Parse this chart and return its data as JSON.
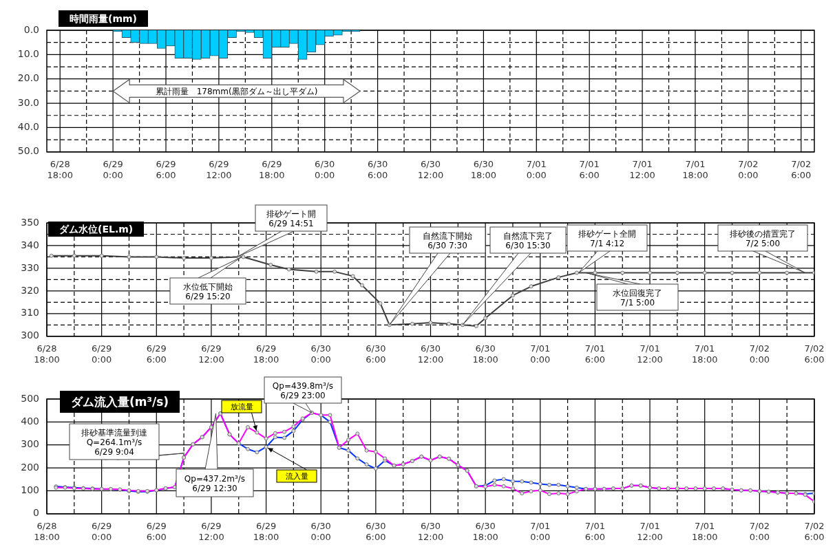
{
  "chart_data": [
    {
      "type": "histogram",
      "title": "時間雨量(mm)",
      "bins": [
        "--06-29T00:00",
        "--06-29T01:00",
        "--06-29T02:00",
        "--06-29T03:00",
        "--06-29T04:00",
        "--06-29T05:00",
        "--06-29T06:00",
        "--06-29T07:00",
        "--06-29T08:00",
        "--06-29T09:00",
        "--06-29T10:00",
        "--06-29T11:00",
        "--06-29T12:00",
        "--06-29T13:00",
        "--06-29T14:00",
        "--06-29T15:00",
        "--06-29T16:00",
        "--06-29T17:00",
        "--06-29T18:00",
        "--06-29T19:00",
        "--06-29T20:00",
        "--06-29T21:00",
        "--06-29T22:00",
        "--06-29T23:00",
        "--06-30T00:00",
        "--06-30T01:00",
        "--06-30T02:00",
        "--06-30T03:00",
        "--06-30T04:00"
      ],
      "values": [
        0.5,
        3,
        5,
        5.5,
        5.5,
        7.5,
        6.5,
        11.5,
        11.5,
        12,
        11.5,
        10.5,
        11.5,
        3,
        0.5,
        1,
        3,
        11.5,
        7,
        7,
        5.5,
        12,
        9,
        6,
        2.5,
        2,
        0.5,
        0.5
      ],
      "color": "#00ccff",
      "xlim": [
        "--06-28T18:00",
        "--07-02T06:00"
      ],
      "xticks": [
        {
          "value": "--06-28T18:00",
          "label": "6/28\n18:00"
        },
        {
          "value": "--06-28T21:00",
          "label": null
        },
        {
          "value": "--06-29T00:00",
          "label": "6/29\n0:00"
        },
        {
          "value": "--06-29T03:00",
          "label": null
        },
        {
          "value": "--06-29T06:00",
          "label": "6/29\n6:00"
        },
        {
          "value": "--06-29T09:00",
          "label": null
        },
        {
          "value": "--06-29T12:00",
          "label": "6/29\n12:00"
        },
        {
          "value": "--06-29T15:00",
          "label": null
        },
        {
          "value": "--06-29T18:00",
          "label": "6/29\n18:00"
        },
        {
          "value": "--06-29T21:00",
          "label": null
        },
        {
          "value": "--06-30T00:00",
          "label": "6/30\n0:00"
        },
        {
          "value": "--06-30T03:00",
          "label": null
        },
        {
          "value": "--06-30T06:00",
          "label": "6/30\n6:00"
        },
        {
          "value": "--06-30T09:00",
          "label": null
        },
        {
          "value": "--06-30T12:00",
          "label": "6/30\n12:00"
        },
        {
          "value": "--06-30T15:00",
          "label": null
        },
        {
          "value": "--06-30T18:00",
          "label": "6/30\n18:00"
        },
        {
          "value": "--06-30T21:00",
          "label": null
        },
        {
          "value": "--07-01T00:00",
          "label": "7/01\n0:00"
        },
        {
          "value": "--07-01T03:00",
          "label": null
        },
        {
          "value": "--07-01T06:00",
          "label": "7/01\n6:00"
        },
        {
          "value": "--07-01T09:00",
          "label": null
        },
        {
          "value": "--07-01T12:00",
          "label": "7/01\n12:00"
        },
        {
          "value": "--07-01T15:00",
          "label": null
        },
        {
          "value": "--07-01T18:00",
          "label": "7/01\n18:00"
        },
        {
          "value": "--07-01T21:00",
          "label": null
        },
        {
          "value": "--07-02T00:00",
          "label": "7/02\n0:00"
        },
        {
          "value": "--07-02T03:00",
          "label": null
        },
        {
          "value": "--07-02T06:00",
          "label": "7/02\n6:00"
        }
      ],
      "ylim": [
        50,
        0
      ],
      "yticks": [
        {
          "value": 0,
          "label": "0.0"
        },
        {
          "value": 5,
          "label": null
        },
        {
          "value": 10,
          "label": "10.0"
        },
        {
          "value": 15,
          "label": null
        },
        {
          "value": 20,
          "label": "20.0"
        },
        {
          "value": 25,
          "label": null
        },
        {
          "value": 30,
          "label": "30.0"
        },
        {
          "value": 35,
          "label": null
        },
        {
          "value": 40,
          "label": "40.0"
        },
        {
          "value": 45,
          "label": null
        },
        {
          "value": 50,
          "label": "50.0"
        }
      ],
      "grid": true,
      "annotations": [
        "累計雨量　178mm(黒部ダム～出し平ダム)"
      ]
    },
    {
      "type": "line",
      "title": "ダム水位(EL.m)",
      "x": [
        "--06-28T18:30",
        "--06-28T21:00",
        "--06-29T00:00",
        "--06-29T03:00",
        "--06-29T06:00",
        "--06-29T09:00",
        "--06-29T12:00",
        "--06-29T15:00",
        "--06-29T15:30",
        "--06-29T18:30",
        "--06-29T20:30",
        "--06-29T23:30",
        "--06-30T01:30",
        "--06-30T03:30",
        "--06-30T04:30",
        "--06-30T06:30",
        "--06-30T07:30",
        "--06-30T10:00",
        "--06-30T12:00",
        "--06-30T14:00",
        "--06-30T15:30",
        "--06-30T17:00",
        "--06-30T18:00",
        "--06-30T21:00",
        "--06-30T23:00",
        "--07-01T02:00",
        "--07-01T04:00",
        "--07-01T06:00",
        "--07-01T09:00",
        "--07-01T12:00",
        "--07-01T15:00",
        "--07-01T18:00",
        "--07-01T21:00",
        "--07-02T00:00",
        "--07-02T03:00",
        "--07-02T06:00"
      ],
      "values": [
        335.5,
        335.5,
        335.5,
        335,
        335,
        334.5,
        334.5,
        335,
        335,
        331.5,
        329.5,
        328.5,
        328.5,
        326.5,
        322.5,
        314.5,
        305,
        305.5,
        306,
        305.5,
        305,
        304.5,
        308,
        318,
        322,
        326,
        328,
        328,
        328,
        328,
        328,
        328,
        328,
        328,
        328,
        328
      ],
      "color": "#404040",
      "marker": "circle",
      "xlim": [
        "--06-28T18:00",
        "--07-02T06:00"
      ],
      "xticks": [
        {
          "value": "--06-28T18:00",
          "label": "6/28\n18:00"
        },
        {
          "value": "--06-28T21:00",
          "label": null
        },
        {
          "value": "--06-29T00:00",
          "label": "6/29\n0:00"
        },
        {
          "value": "--06-29T03:00",
          "label": null
        },
        {
          "value": "--06-29T06:00",
          "label": "6/29\n6:00"
        },
        {
          "value": "--06-29T09:00",
          "label": null
        },
        {
          "value": "--06-29T12:00",
          "label": "6/29\n12:00"
        },
        {
          "value": "--06-29T15:00",
          "label": null
        },
        {
          "value": "--06-29T18:00",
          "label": "6/29\n18:00"
        },
        {
          "value": "--06-29T21:00",
          "label": null
        },
        {
          "value": "--06-30T00:00",
          "label": "6/30\n0:00"
        },
        {
          "value": "--06-30T03:00",
          "label": null
        },
        {
          "value": "--06-30T06:00",
          "label": "6/30\n6:00"
        },
        {
          "value": "--06-30T09:00",
          "label": null
        },
        {
          "value": "--06-30T12:00",
          "label": "6/30\n12:00"
        },
        {
          "value": "--06-30T15:00",
          "label": null
        },
        {
          "value": "--06-30T18:00",
          "label": "6/30\n18:00"
        },
        {
          "value": "--06-30T21:00",
          "label": null
        },
        {
          "value": "--07-01T00:00",
          "label": "7/01\n0:00"
        },
        {
          "value": "--07-01T03:00",
          "label": null
        },
        {
          "value": "--07-01T06:00",
          "label": "7/01\n6:00"
        },
        {
          "value": "--07-01T09:00",
          "label": null
        },
        {
          "value": "--07-01T12:00",
          "label": "7/01\n12:00"
        },
        {
          "value": "--07-01T15:00",
          "label": null
        },
        {
          "value": "--07-01T18:00",
          "label": "7/01\n18:00"
        },
        {
          "value": "--07-01T21:00",
          "label": null
        },
        {
          "value": "--07-02T00:00",
          "label": "7/02\n0:00"
        },
        {
          "value": "--07-02T03:00",
          "label": null
        },
        {
          "value": "--07-02T06:00",
          "label": "7/02\n6:00"
        }
      ],
      "ylim": [
        300,
        350
      ],
      "yticks": [
        300,
        {
          "value": 305,
          "label": null
        },
        310,
        {
          "value": 315,
          "label": null
        },
        320,
        {
          "value": 325,
          "label": null
        },
        330,
        {
          "value": 335,
          "label": null
        },
        340,
        {
          "value": 345,
          "label": null
        },
        350
      ],
      "grid": true,
      "annotations": [
        {
          "text": "排砂ゲート開\n6/29 14:51",
          "x": "--06-29T14:51",
          "y": 335
        },
        {
          "text": "水位低下開始\n6/29  15:20",
          "x": "--06-29T15:20",
          "y": 335
        },
        {
          "text": "自然流下開始\n6/30  7:30",
          "x": "--06-30T07:30",
          "y": 305
        },
        {
          "text": "自然流下完了\n6/30  15:30",
          "x": "--06-30T15:30",
          "y": 305
        },
        {
          "text": "排砂ゲート全開\n7/1  4:12",
          "x": "--07-01T04:12",
          "y": 328
        },
        {
          "text": "水位回復完了\n7/1  5:00",
          "x": "--07-01T05:00",
          "y": 328
        },
        {
          "text": "排砂後の措置完了\n7/2  5:00",
          "x": "--07-02T05:00",
          "y": 328
        }
      ]
    },
    {
      "type": "line",
      "title": "ダム流入量(m³/s)",
      "x": [
        "--06-28T19:00",
        "--06-28T20:00",
        "--06-28T21:00",
        "--06-28T22:00",
        "--06-28T23:00",
        "--06-29T00:00",
        "--06-29T01:00",
        "--06-29T02:00",
        "--06-29T03:00",
        "--06-29T04:00",
        "--06-29T05:00",
        "--06-29T06:00",
        "--06-29T07:00",
        "--06-29T08:00",
        "--06-29T09:00",
        "--06-29T10:00",
        "--06-29T11:00",
        "--06-29T12:00",
        "--06-29T13:00",
        "--06-29T14:00",
        "--06-29T15:00",
        "--06-29T16:00",
        "--06-29T17:00",
        "--06-29T18:00",
        "--06-29T19:00",
        "--06-29T20:00",
        "--06-29T21:00",
        "--06-29T22:00",
        "--06-29T23:00",
        "--06-30T00:00",
        "--06-30T01:00",
        "--06-30T02:00",
        "--06-30T03:00",
        "--06-30T04:00",
        "--06-30T05:00",
        "--06-30T06:00",
        "--06-30T07:00",
        "--06-30T08:00",
        "--06-30T09:00",
        "--06-30T10:00",
        "--06-30T11:00",
        "--06-30T12:00",
        "--06-30T13:00",
        "--06-30T14:00",
        "--06-30T15:00",
        "--06-30T16:00",
        "--06-30T17:00",
        "--06-30T18:00",
        "--06-30T19:00",
        "--06-30T20:00",
        "--06-30T21:00",
        "--06-30T22:00",
        "--06-30T23:00",
        "--07-01T00:00",
        "--07-01T01:00",
        "--07-01T02:00",
        "--07-01T03:00",
        "--07-01T04:00",
        "--07-01T05:00",
        "--07-01T06:00",
        "--07-01T07:00",
        "--07-01T08:00",
        "--07-01T09:00",
        "--07-01T10:00",
        "--07-01T11:00",
        "--07-01T12:00",
        "--07-01T13:00",
        "--07-01T14:00",
        "--07-01T15:00",
        "--07-01T16:00",
        "--07-01T17:00",
        "--07-01T18:00",
        "--07-01T19:00",
        "--07-01T20:00",
        "--07-01T21:00",
        "--07-01T22:00",
        "--07-01T23:00",
        "--07-02T00:00",
        "--07-02T01:00",
        "--07-02T02:00",
        "--07-02T03:00",
        "--07-02T04:00",
        "--07-02T05:00",
        "--07-02T06:00"
      ],
      "series": [
        {
          "name": "放流量",
          "color": "#ff00ff",
          "values": [
            114,
            114,
            111,
            110,
            108,
            108,
            108,
            106,
            102,
            99,
            99,
            103,
            111,
            116,
            245,
            303,
            334,
            377,
            437,
            346,
            307,
            377,
            354,
            328,
            351,
            357,
            380,
            415,
            440,
            430,
            430,
            288,
            322,
            349,
            276,
            270,
            241,
            210,
            216,
            230,
            249,
            233,
            249,
            240,
            212,
            188,
            120,
            118,
            126,
            120,
            110,
            89,
            98,
            102,
            86,
            89,
            86,
            98,
            108,
            108,
            108,
            110,
            110,
            123,
            123,
            114,
            110,
            110,
            110,
            110,
            110,
            110,
            110,
            110,
            105,
            102,
            102,
            98,
            96,
            93,
            89,
            89,
            83,
            53
          ]
        },
        {
          "name": "流入量",
          "color": "#0033ff",
          "values": [
            119,
            116,
            114,
            112,
            110,
            108,
            107,
            105,
            99,
            96,
            96,
            102,
            110,
            116,
            245,
            303,
            334,
            377,
            437,
            346,
            307,
            282,
            268,
            291,
            334,
            331,
            361,
            410,
            440,
            430,
            400,
            288,
            276,
            241,
            215,
            197,
            232,
            210,
            216,
            230,
            249,
            233,
            249,
            240,
            212,
            188,
            120,
            123,
            145,
            151,
            142,
            141,
            136,
            130,
            126,
            126,
            120,
            114,
            108,
            108,
            108,
            110,
            110,
            123,
            123,
            114,
            110,
            110,
            110,
            110,
            110,
            110,
            110,
            110,
            105,
            102,
            102,
            98,
            96,
            93,
            89,
            89,
            86,
            89
          ]
        }
      ],
      "marker": "circle",
      "xlim": [
        "--06-28T18:00",
        "--07-02T06:00"
      ],
      "xticks": [
        {
          "value": "--06-28T18:00",
          "label": "6/28\n18:00"
        },
        {
          "value": "--06-28T21:00",
          "label": null
        },
        {
          "value": "--06-29T00:00",
          "label": "6/29\n0:00"
        },
        {
          "value": "--06-29T03:00",
          "label": null
        },
        {
          "value": "--06-29T06:00",
          "label": "6/29\n6:00"
        },
        {
          "value": "--06-29T09:00",
          "label": null
        },
        {
          "value": "--06-29T12:00",
          "label": "6/29\n12:00"
        },
        {
          "value": "--06-29T15:00",
          "label": null
        },
        {
          "value": "--06-29T18:00",
          "label": "6/29\n18:00"
        },
        {
          "value": "--06-29T21:00",
          "label": null
        },
        {
          "value": "--06-30T00:00",
          "label": "6/30\n0:00"
        },
        {
          "value": "--06-30T03:00",
          "label": null
        },
        {
          "value": "--06-30T06:00",
          "label": "6/30\n6:00"
        },
        {
          "value": "--06-30T09:00",
          "label": null
        },
        {
          "value": "--06-30T12:00",
          "label": "6/30\n12:00"
        },
        {
          "value": "--06-30T15:00",
          "label": null
        },
        {
          "value": "--06-30T18:00",
          "label": "6/30\n18:00"
        },
        {
          "value": "--06-30T21:00",
          "label": null
        },
        {
          "value": "--07-01T00:00",
          "label": "7/01\n0:00"
        },
        {
          "value": "--07-01T03:00",
          "label": null
        },
        {
          "value": "--07-01T06:00",
          "label": "7/01\n6:00"
        },
        {
          "value": "--07-01T09:00",
          "label": null
        },
        {
          "value": "--07-01T12:00",
          "label": "7/01\n12:00"
        },
        {
          "value": "--07-01T15:00",
          "label": null
        },
        {
          "value": "--07-01T18:00",
          "label": "7/01\n18:00"
        },
        {
          "value": "--07-01T21:00",
          "label": null
        },
        {
          "value": "--07-02T00:00",
          "label": "7/02\n0:00"
        },
        {
          "value": "--07-02T03:00",
          "label": null
        },
        {
          "value": "--07-02T06:00",
          "label": "7/02\n6:00"
        }
      ],
      "ylim": [
        0,
        500
      ],
      "yticks": [
        0,
        100,
        200,
        300,
        400,
        500
      ],
      "grid": true,
      "annotations": [
        {
          "text": "排砂基準流量到達\nQ=264.1m³/s\n6/29  9:04",
          "x": "--06-29T09:04",
          "y": 264.1
        },
        {
          "text": "Qp=437.2m³/s\n6/29 12:30",
          "x": "--06-29T12:30",
          "y": 437.2
        },
        {
          "text": "Qp=439.8m³/s\n6/29 23:00",
          "x": "--06-29T23:00",
          "y": 439.8
        }
      ]
    }
  ]
}
